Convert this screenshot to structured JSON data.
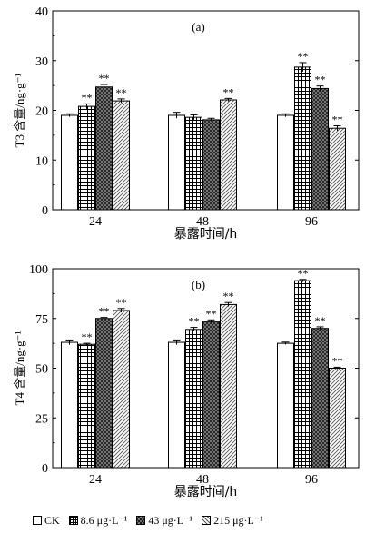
{
  "chart_data": [
    {
      "type": "bar",
      "panel_label": "(a)",
      "ylabel": "T3 含量/ng·g⁻¹",
      "xlabel": "暴露时间/h",
      "categories": [
        "24",
        "48",
        "96"
      ],
      "ylim": [
        0,
        40
      ],
      "yticks": [
        "0",
        "10",
        "20",
        "30",
        "40"
      ],
      "series": [
        {
          "name": "CK",
          "values": [
            19.0,
            19.0,
            19.0
          ],
          "errors": [
            0.3,
            0.6,
            0.3
          ],
          "marks": [
            "",
            "",
            ""
          ]
        },
        {
          "name": "8.6 μg·L⁻¹",
          "values": [
            20.8,
            18.6,
            28.7
          ],
          "errors": [
            0.5,
            0.5,
            0.9
          ],
          "marks": [
            "**",
            "",
            "**"
          ]
        },
        {
          "name": "43 μg·L⁻¹",
          "values": [
            24.7,
            18.1,
            24.4
          ],
          "errors": [
            0.5,
            0.3,
            0.5
          ],
          "marks": [
            "**",
            "",
            "**"
          ]
        },
        {
          "name": "215 μg·L⁻¹",
          "values": [
            21.9,
            22.1,
            16.4
          ],
          "errors": [
            0.4,
            0.3,
            0.5
          ],
          "marks": [
            "**",
            "**",
            "**"
          ]
        }
      ]
    },
    {
      "type": "bar",
      "panel_label": "(b)",
      "ylabel": "T4 含量/ng·g⁻¹",
      "xlabel": "暴露时间/h",
      "categories": [
        "24",
        "48",
        "96"
      ],
      "ylim": [
        0,
        100
      ],
      "yticks": [
        "0",
        "25",
        "50",
        "75",
        "100"
      ],
      "series": [
        {
          "name": "CK",
          "values": [
            63.0,
            63.0,
            62.5
          ],
          "errors": [
            1.2,
            1.2,
            0.6
          ],
          "marks": [
            "",
            "",
            ""
          ]
        },
        {
          "name": "8.6 μg·L⁻¹",
          "values": [
            62.0,
            69.5,
            94.0
          ],
          "errors": [
            0.5,
            1.0,
            0.6
          ],
          "marks": [
            "**",
            "**",
            "**"
          ]
        },
        {
          "name": "43 μg·L⁻¹",
          "values": [
            75.0,
            73.5,
            70.0
          ],
          "errors": [
            0.5,
            0.8,
            0.8
          ],
          "marks": [
            "**",
            "**",
            "**"
          ]
        },
        {
          "name": "215 μg·L⁻¹",
          "values": [
            79.0,
            82.0,
            50.0
          ],
          "errors": [
            1.0,
            1.0,
            0.5
          ],
          "marks": [
            "**",
            "**",
            "**"
          ]
        }
      ]
    }
  ],
  "legend": [
    {
      "label": "CK",
      "pattern": "plain"
    },
    {
      "label": "8.6 μg·L⁻¹",
      "pattern": "grid"
    },
    {
      "label": "43 μg·L⁻¹",
      "pattern": "crosshatch-dark"
    },
    {
      "label": "215 μg·L⁻¹",
      "pattern": "diagonal"
    }
  ]
}
